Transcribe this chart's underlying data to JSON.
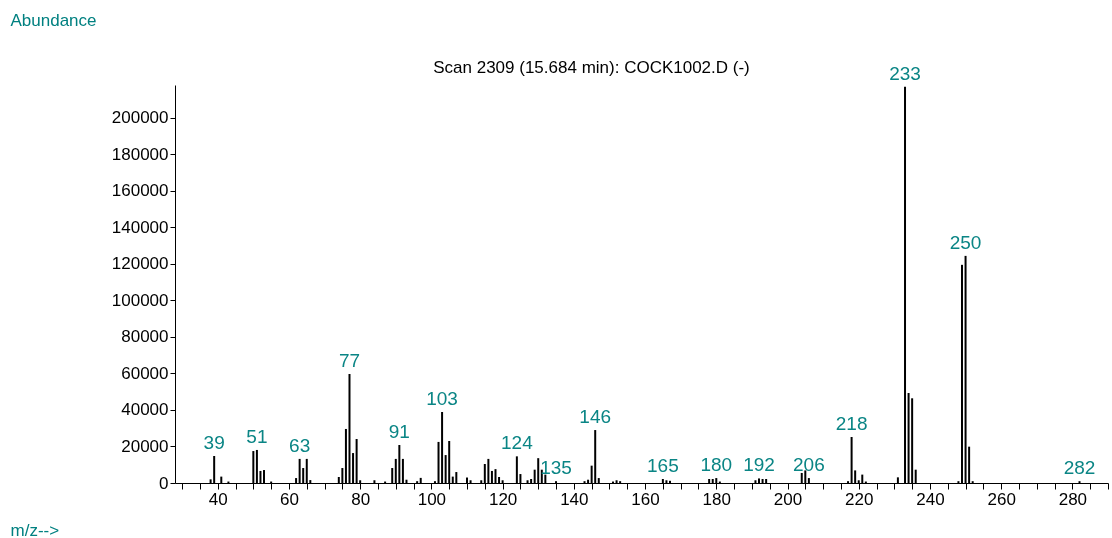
{
  "chart_data": {
    "type": "bar",
    "title": "Scan 2309 (15.684 min): COCK1002.D (-)",
    "xlabel": "m/z-->",
    "ylabel": "Abundance",
    "x": [
      38,
      39,
      41,
      43,
      50,
      51,
      52,
      53,
      55,
      62,
      63,
      64,
      65,
      66,
      74,
      75,
      76,
      77,
      78,
      79,
      80,
      84,
      87,
      89,
      90,
      91,
      92,
      93,
      96,
      97,
      101,
      102,
      103,
      104,
      105,
      106,
      107,
      110,
      111,
      114,
      115,
      116,
      117,
      118,
      119,
      120,
      124,
      125,
      127,
      128,
      129,
      130,
      131,
      132,
      135,
      143,
      144,
      145,
      146,
      147,
      151,
      152,
      153,
      165,
      166,
      167,
      178,
      179,
      180,
      181,
      191,
      192,
      193,
      194,
      204,
      205,
      206,
      217,
      218,
      219,
      220,
      221,
      222,
      231,
      233,
      234,
      235,
      236,
      248,
      249,
      250,
      251,
      252,
      282
    ],
    "values": [
      2000,
      14800,
      3500,
      800,
      17500,
      18100,
      6600,
      7100,
      800,
      2700,
      13200,
      8200,
      13200,
      1600,
      3300,
      8200,
      29600,
      59700,
      16400,
      24100,
      1500,
      1500,
      800,
      8200,
      13200,
      20800,
      13200,
      1800,
      1000,
      2800,
      1000,
      22500,
      38900,
      15300,
      23000,
      3500,
      6000,
      3000,
      1500,
      1500,
      10400,
      13200,
      6600,
      7600,
      3300,
      1500,
      14600,
      4900,
      1500,
      2200,
      7300,
      13600,
      7300,
      4600,
      1000,
      1000,
      1800,
      9500,
      29000,
      2700,
      800,
      1500,
      1000,
      2200,
      1500,
      1200,
      2200,
      2200,
      2700,
      800,
      1500,
      2500,
      2200,
      2200,
      5500,
      6900,
      2700,
      1000,
      25200,
      6900,
      1500,
      4600,
      800,
      3100,
      217000,
      49300,
      46400,
      7300,
      1000,
      119500,
      124400,
      19900,
      1000,
      1000
    ],
    "color": "#000000",
    "annotations": [
      {
        "text": "39",
        "x": 39,
        "y": 14800
      },
      {
        "text": "51",
        "x": 51,
        "y": 18100
      },
      {
        "text": "63",
        "x": 63,
        "y": 13200
      },
      {
        "text": "77",
        "x": 77,
        "y": 59700
      },
      {
        "text": "91",
        "x": 91,
        "y": 20800
      },
      {
        "text": "103",
        "x": 103,
        "y": 38900
      },
      {
        "text": "124",
        "x": 124,
        "y": 14600
      },
      {
        "text": "135",
        "x": 135,
        "y": 1000
      },
      {
        "text": "146",
        "x": 146,
        "y": 29000
      },
      {
        "text": "165",
        "x": 165,
        "y": 2200
      },
      {
        "text": "180",
        "x": 180,
        "y": 2700
      },
      {
        "text": "192",
        "x": 192,
        "y": 2500
      },
      {
        "text": "206",
        "x": 206,
        "y": 2700
      },
      {
        "text": "218",
        "x": 218,
        "y": 25200
      },
      {
        "text": "233",
        "x": 233,
        "y": 217000
      },
      {
        "text": "250",
        "x": 250,
        "y": 124400
      },
      {
        "text": "282",
        "x": 282,
        "y": 1000
      }
    ],
    "xlim": [
      28,
      290
    ],
    "ylim": [
      0,
      218000
    ],
    "xticks": [
      {
        "value": 30,
        "label": null
      },
      {
        "value": 35,
        "label": null
      },
      40,
      {
        "value": 45,
        "label": null
      },
      {
        "value": 50,
        "label": null
      },
      {
        "value": 55,
        "label": null
      },
      60,
      {
        "value": 65,
        "label": null
      },
      {
        "value": 70,
        "label": null
      },
      {
        "value": 75,
        "label": null
      },
      80,
      {
        "value": 85,
        "label": null
      },
      {
        "value": 90,
        "label": null
      },
      {
        "value": 95,
        "label": null
      },
      100,
      {
        "value": 105,
        "label": null
      },
      {
        "value": 110,
        "label": null
      },
      {
        "value": 115,
        "label": null
      },
      120,
      {
        "value": 125,
        "label": null
      },
      {
        "value": 130,
        "label": null
      },
      {
        "value": 135,
        "label": null
      },
      140,
      {
        "value": 145,
        "label": null
      },
      {
        "value": 150,
        "label": null
      },
      {
        "value": 155,
        "label": null
      },
      160,
      {
        "value": 165,
        "label": null
      },
      {
        "value": 170,
        "label": null
      },
      {
        "value": 175,
        "label": null
      },
      180,
      {
        "value": 185,
        "label": null
      },
      {
        "value": 190,
        "label": null
      },
      {
        "value": 195,
        "label": null
      },
      200,
      {
        "value": 205,
        "label": null
      },
      {
        "value": 210,
        "label": null
      },
      {
        "value": 215,
        "label": null
      },
      220,
      {
        "value": 225,
        "label": null
      },
      {
        "value": 230,
        "label": null
      },
      {
        "value": 235,
        "label": null
      },
      240,
      {
        "value": 245,
        "label": null
      },
      {
        "value": 250,
        "label": null
      },
      {
        "value": 255,
        "label": null
      },
      260,
      {
        "value": 265,
        "label": null
      },
      {
        "value": 270,
        "label": null
      },
      {
        "value": 275,
        "label": null
      },
      280,
      {
        "value": 285,
        "label": null
      },
      {
        "value": 290,
        "label": null
      }
    ],
    "yticks": [
      0,
      20000,
      40000,
      60000,
      80000,
      100000,
      120000,
      140000,
      160000,
      180000,
      200000
    ]
  }
}
